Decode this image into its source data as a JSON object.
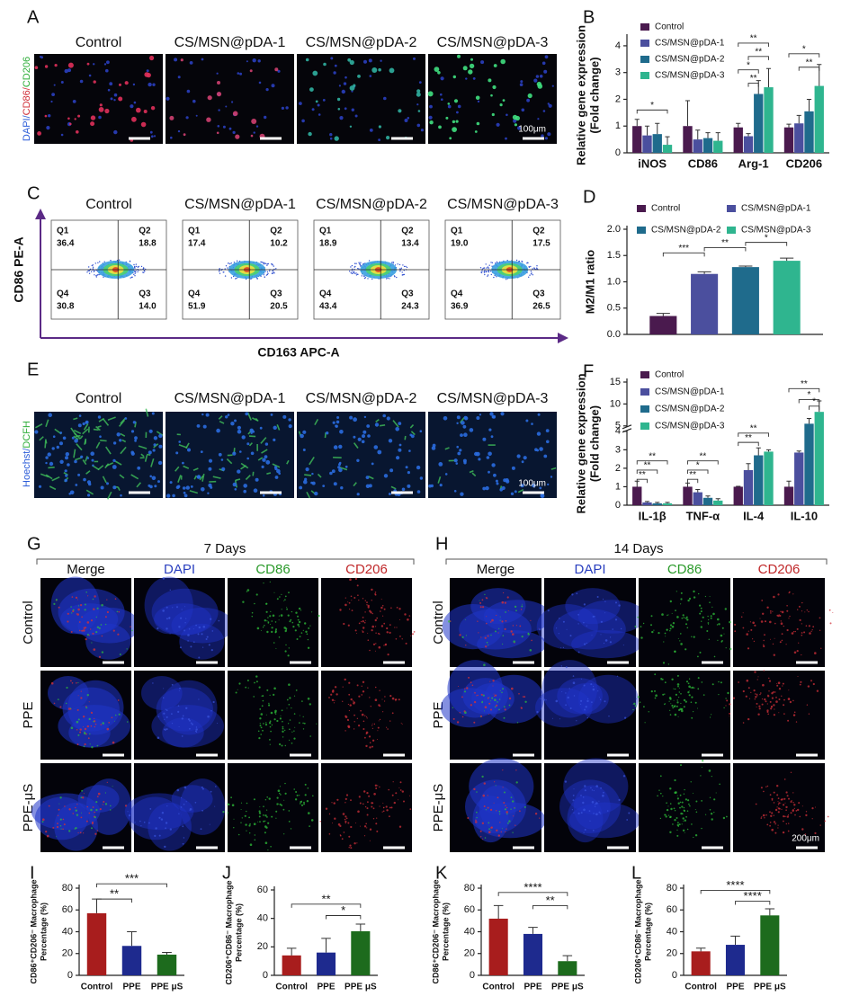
{
  "panel_a": {
    "label": "A",
    "columns": [
      "Control",
      "CS/MSN@pDA-1",
      "CS/MSN@pDA-2",
      "CS/MSN@pDA-3"
    ],
    "stain_label": [
      "DAPI/",
      "CD86/",
      "CD206"
    ],
    "scale_bar": "100μm"
  },
  "panel_c": {
    "label": "C",
    "columns": [
      "Control",
      "CS/MSN@pDA-1",
      "CS/MSN@pDA-2",
      "CS/MSN@pDA-3"
    ],
    "y_label": "CD86 PE-A",
    "x_label": "CD163 APC-A",
    "quadrants": [
      "Q1",
      "Q2",
      "Q4",
      "Q3"
    ],
    "plots": [
      [
        "36.4",
        "18.8",
        "30.8",
        "14.0"
      ],
      [
        "17.4",
        "10.2",
        "51.9",
        "20.5"
      ],
      [
        "18.9",
        "13.4",
        "43.4",
        "24.3"
      ],
      [
        "19.0",
        "17.5",
        "36.9",
        "26.5"
      ]
    ]
  },
  "panel_e": {
    "label": "E",
    "columns": [
      "Control",
      "CS/MSN@pDA-1",
      "CS/MSN@pDA-2",
      "CS/MSN@pDA-3"
    ],
    "stain_label": [
      "Hoechst/",
      "DCFH"
    ],
    "scale_bar": "100μm"
  },
  "panel_g": {
    "label": "G",
    "title": "7 Days",
    "columns": [
      "Merge",
      "DAPI",
      "CD86",
      "CD206"
    ],
    "rows": [
      "Control",
      "PPE",
      "PPE-μS"
    ]
  },
  "panel_h": {
    "label": "H",
    "title": "14 Days",
    "columns": [
      "Merge",
      "DAPI",
      "CD86",
      "CD206"
    ],
    "rows": [
      "Control",
      "PPE",
      "PPE-μS"
    ],
    "scale_bar": "200μm"
  },
  "chart_data": [
    {
      "type": "bar",
      "label": "B",
      "y_label": [
        "Relative gene expression",
        "(Fold change)"
      ],
      "categories": [
        "iNOS",
        "CD86",
        "Arg-1",
        "CD206"
      ],
      "series": [
        {
          "name": "Control",
          "color": "#4a1a4e",
          "values": [
            1.0,
            1.0,
            0.95,
            0.95
          ],
          "errors": [
            0.25,
            0.95,
            0.15,
            0.12
          ]
        },
        {
          "name": "CS/MSN@pDA-1",
          "color": "#4b4f9e",
          "values": [
            0.65,
            0.5,
            0.62,
            1.1
          ],
          "errors": [
            0.35,
            0.35,
            0.1,
            0.3
          ]
        },
        {
          "name": "CS/MSN@pDA-2",
          "color": "#1f6b8c",
          "values": [
            0.7,
            0.55,
            2.2,
            1.55
          ],
          "errors": [
            0.4,
            0.2,
            0.5,
            0.45
          ]
        },
        {
          "name": "CS/MSN@pDA-3",
          "color": "#2fb58f",
          "values": [
            0.3,
            0.45,
            2.45,
            2.5
          ],
          "errors": [
            0.3,
            0.3,
            0.7,
            0.8
          ]
        }
      ],
      "ylim": [
        0,
        4.3
      ],
      "yticks": [
        0,
        1,
        2,
        3,
        4
      ],
      "legend": "top-left",
      "significance": [
        "*",
        "**",
        "**",
        "*",
        "**",
        "*",
        "**"
      ]
    },
    {
      "type": "bar",
      "label": "D",
      "y_label": [
        "M2/M1 ratio"
      ],
      "series": [
        {
          "name": "Control",
          "color": "#4a1a4e",
          "values": [
            0.35
          ],
          "errors": [
            0.05
          ]
        },
        {
          "name": "CS/MSN@pDA-1",
          "color": "#4b4f9e",
          "values": [
            1.15
          ],
          "errors": [
            0.04
          ]
        },
        {
          "name": "CS/MSN@pDA-2",
          "color": "#1f6b8c",
          "values": [
            1.28
          ],
          "errors": [
            0.02
          ]
        },
        {
          "name": "CS/MSN@pDA-3",
          "color": "#2fb58f",
          "values": [
            1.4
          ],
          "errors": [
            0.05
          ]
        }
      ],
      "ylim": [
        0,
        2
      ],
      "yticks": [
        {
          "value": 0,
          "label": "0.0"
        },
        0.5,
        {
          "value": 1,
          "label": "1.0"
        },
        1.5,
        {
          "value": 2,
          "label": "2.0"
        }
      ],
      "legend": "top",
      "significance": [
        "***",
        "**",
        "*"
      ]
    },
    {
      "type": "bar",
      "label": "F",
      "y_label": [
        "Relative gene expression",
        "(Fold change)"
      ],
      "categories": [
        "IL-1β",
        "TNF-α",
        "IL-4",
        "IL-10"
      ],
      "series": [
        {
          "name": "Control",
          "color": "#4a1a4e",
          "values": [
            1,
            1,
            1,
            1
          ],
          "errors": [
            0.3,
            0.2,
            0.02,
            0.3
          ]
        },
        {
          "name": "CS/MSN@pDA-1",
          "color": "#4b4f9e",
          "values": [
            0.15,
            0.7,
            1.9,
            2.85
          ],
          "errors": [
            0.05,
            0.15,
            0.35,
            0.08
          ]
        },
        {
          "name": "CS/MSN@pDA-2",
          "color": "#1f6b8c",
          "values": [
            0.1,
            0.4,
            2.7,
            5.5
          ],
          "errors": [
            0.05,
            0.1,
            0.4,
            1.2
          ]
        },
        {
          "name": "CS/MSN@pDA-3",
          "color": "#2fb58f",
          "values": [
            0.1,
            0.25,
            2.9,
            8.2
          ],
          "errors": [
            0.05,
            0.1,
            0.1,
            2.5
          ]
        }
      ],
      "ylim": [
        0,
        15
      ],
      "yticks": [
        0,
        1,
        2,
        3,
        4,
        5,
        10,
        15
      ],
      "ybreak": [
        4,
        5
      ],
      "legend": "top-left",
      "significance": [
        "**",
        "**",
        "**",
        "**",
        "*",
        "**",
        "**",
        "**",
        "**",
        "*",
        "*"
      ]
    },
    {
      "type": "bar",
      "label": "I",
      "y_label": [
        "CD86⁺CD206⁻ Macrophage",
        "Percentage (%)"
      ],
      "categories": [
        "Control",
        "PPE",
        "PPE μS"
      ],
      "values": [
        57,
        27,
        19
      ],
      "errors": [
        13,
        13,
        2
      ],
      "colors": [
        "#a81d1d",
        "#1e2a8e",
        "#1d6b1d"
      ],
      "ylim": [
        0,
        80
      ],
      "yticks": [
        0,
        20,
        40,
        60,
        80
      ],
      "significance": [
        "**",
        "***"
      ]
    },
    {
      "type": "bar",
      "label": "J",
      "y_label": [
        "CD206⁺CD86⁻ Macrophage",
        "Percentage (%)"
      ],
      "categories": [
        "Control",
        "PPE",
        "PPE μS"
      ],
      "values": [
        14,
        16,
        31
      ],
      "errors": [
        5,
        10,
        5
      ],
      "colors": [
        "#a81d1d",
        "#1e2a8e",
        "#1d6b1d"
      ],
      "ylim": [
        0,
        60
      ],
      "yticks": [
        0,
        20,
        40,
        60
      ],
      "significance": [
        "**",
        "*"
      ]
    },
    {
      "type": "bar",
      "label": "K",
      "y_label": [
        "CD86⁺CD206⁻ Macrophage",
        "Percentage (%)"
      ],
      "categories": [
        "Control",
        "PPE",
        "PPE μS"
      ],
      "values": [
        52,
        38,
        13
      ],
      "errors": [
        12,
        6,
        5
      ],
      "colors": [
        "#a81d1d",
        "#1e2a8e",
        "#1d6b1d"
      ],
      "ylim": [
        0,
        80
      ],
      "yticks": [
        0,
        20,
        40,
        60,
        80
      ],
      "significance": [
        "****",
        "**"
      ]
    },
    {
      "type": "bar",
      "label": "L",
      "y_label": [
        "CD206⁺CD86⁻ Macrophage",
        "Percentage (%)"
      ],
      "categories": [
        "Control",
        "PPE",
        "PPE μS"
      ],
      "values": [
        22,
        28,
        55
      ],
      "errors": [
        3,
        8,
        6
      ],
      "colors": [
        "#a81d1d",
        "#1e2a8e",
        "#1d6b1d"
      ],
      "ylim": [
        0,
        80
      ],
      "yticks": [
        0,
        20,
        40,
        60,
        80
      ],
      "significance": [
        "****",
        "****"
      ]
    }
  ]
}
